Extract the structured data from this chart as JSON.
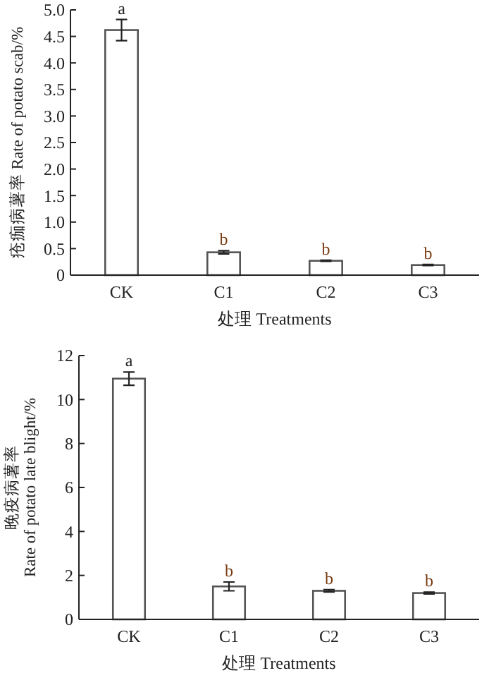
{
  "chart_data": [
    {
      "type": "bar",
      "ylabel": "疮痂病薯率 Rate of potato scab/%",
      "xlabel": "处理 Treatments",
      "categories": [
        "CK",
        "C1",
        "C2",
        "C3"
      ],
      "values": [
        4.62,
        0.43,
        0.27,
        0.19
      ],
      "errors": [
        0.2,
        0.03,
        0.01,
        0.01
      ],
      "color": "#ffffff",
      "ylim": [
        0,
        5
      ],
      "yticks": [
        0,
        0.5,
        {
          "value": 1,
          "label": "1.0"
        },
        1.5,
        {
          "value": 2,
          "label": "2.0"
        },
        2.5,
        {
          "value": 3,
          "label": "3.0"
        },
        3.5,
        {
          "value": 4,
          "label": "4.0"
        },
        4.5,
        {
          "value": 5,
          "label": "5.0"
        }
      ],
      "annotations": [
        {
          "text": "a",
          "x": "CK",
          "y": 4.82
        },
        {
          "text": "b",
          "x": "C1",
          "y": 0.46
        },
        {
          "text": "b",
          "x": "C2",
          "y": 0.28
        },
        {
          "text": "b",
          "x": "C3",
          "y": 0.2
        }
      ]
    },
    {
      "type": "bar",
      "ylabel": "晚疫病薯率\nRate of potato late blight/%",
      "xlabel": "处理 Treatments",
      "categories": [
        "CK",
        "C1",
        "C2",
        "C3"
      ],
      "values": [
        10.95,
        1.5,
        1.3,
        1.2
      ],
      "errors": [
        0.3,
        0.2,
        0.05,
        0.04
      ],
      "color": "#ffffff",
      "ylim": [
        0,
        12
      ],
      "yticks": [
        0,
        2,
        4,
        6,
        8,
        10,
        12
      ],
      "annotations": [
        {
          "text": "a",
          "x": "CK",
          "y": 11.25
        },
        {
          "text": "b",
          "x": "C1",
          "y": 1.7
        },
        {
          "text": "b",
          "x": "C2",
          "y": 1.35
        },
        {
          "text": "b",
          "x": "C3",
          "y": 1.24
        }
      ]
    }
  ]
}
